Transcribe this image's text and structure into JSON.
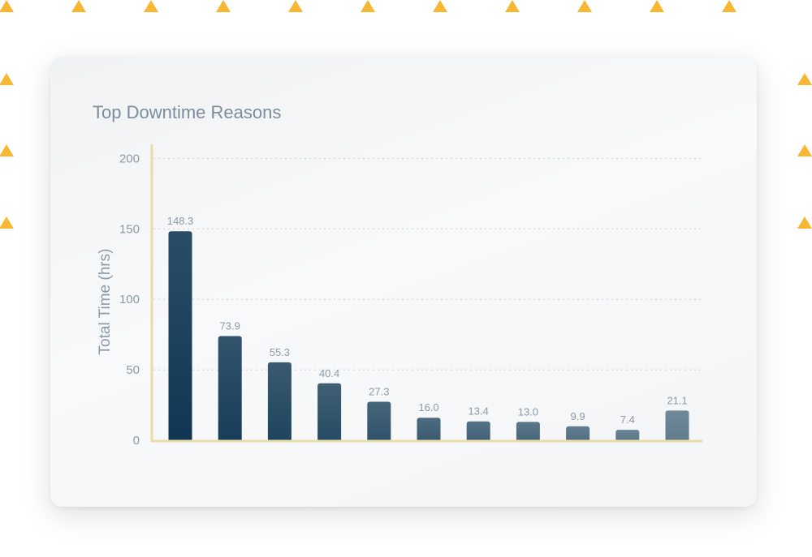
{
  "colors": {
    "decor_triangle": "#f7b733",
    "axis": "#eadca9",
    "gridline": "#c9d0d6",
    "bar_dark": "#0f3653",
    "bar_light": "#5f7b8c",
    "label": "#8a9aa8"
  },
  "chart_data": {
    "type": "bar",
    "title": "Top Downtime Reasons",
    "xlabel": "",
    "ylabel": "Total Time (hrs)",
    "ylim": [
      0,
      210
    ],
    "yticks": [
      0,
      50,
      100,
      150,
      200
    ],
    "grid": true,
    "values": [
      148.3,
      73.9,
      55.3,
      40.4,
      27.3,
      16.0,
      13.4,
      13.0,
      9.9,
      7.4,
      21.1
    ],
    "value_labels": [
      "148.3",
      "73.9",
      "55.3",
      "40.4",
      "27.3",
      "16.0",
      "13.4",
      "13.0",
      "9.9",
      "7.4",
      "21.1"
    ]
  }
}
